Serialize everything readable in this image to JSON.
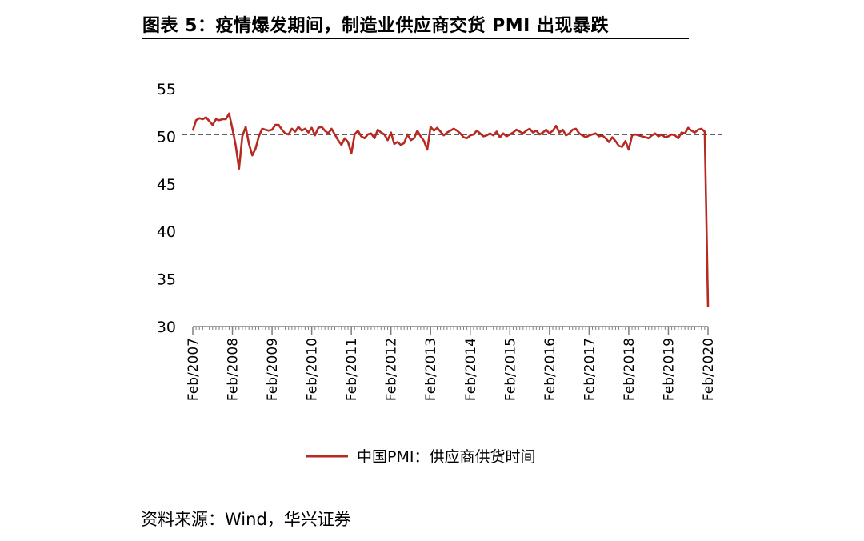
{
  "figure": {
    "title": "图表 5：疫情爆发期间，制造业供应商交货 PMI 出现暴跌",
    "source": "资料来源：Wind，华兴证券"
  },
  "colors": {
    "series": "#b72a22",
    "reference_line": "#000000",
    "axis": "#7f7f7f"
  },
  "chart_data": {
    "type": "line",
    "title": "",
    "xlabel": "",
    "ylabel": "",
    "ylim": [
      30,
      55
    ],
    "yticks": [
      30,
      35,
      40,
      45,
      50,
      55
    ],
    "tick_labels": [
      "Feb/2007",
      "Feb/2008",
      "Feb/2009",
      "Feb/2010",
      "Feb/2011",
      "Feb/2012",
      "Feb/2013",
      "Feb/2014",
      "Feb/2015",
      "Feb/2016",
      "Feb/2017",
      "Feb/2018",
      "Feb/2019",
      "Feb/2020"
    ],
    "grid": false,
    "legend": "bottom-center",
    "reference_line": {
      "y": 50.2,
      "style": "dashed"
    },
    "series": [
      {
        "name": "中国PMI：供应商供货时间",
        "start": "2007-02",
        "frequency": "monthly",
        "values": [
          50.6,
          51.7,
          51.9,
          51.8,
          52.0,
          51.6,
          51.2,
          51.8,
          51.7,
          51.8,
          51.8,
          52.4,
          50.8,
          49.0,
          46.6,
          50.0,
          51.0,
          49.2,
          48.0,
          48.7,
          50.0,
          50.8,
          50.7,
          50.6,
          50.7,
          51.2,
          51.2,
          50.7,
          50.3,
          50.2,
          50.8,
          50.5,
          51.0,
          50.6,
          50.8,
          50.4,
          50.9,
          50.1,
          50.9,
          51.0,
          50.6,
          50.3,
          50.8,
          50.2,
          49.6,
          49.1,
          49.8,
          49.4,
          48.2,
          50.2,
          50.6,
          50.0,
          49.8,
          50.2,
          50.3,
          49.8,
          50.7,
          50.4,
          50.2,
          49.6,
          50.4,
          49.2,
          49.4,
          49.1,
          49.3,
          50.2,
          49.6,
          49.8,
          50.6,
          50.0,
          49.5,
          48.6,
          51.0,
          50.6,
          50.9,
          50.5,
          50.1,
          50.4,
          50.6,
          50.8,
          50.6,
          50.3,
          49.9,
          49.8,
          50.1,
          50.2,
          50.6,
          50.3,
          50.0,
          50.1,
          50.3,
          50.1,
          50.5,
          49.9,
          50.3,
          50.0,
          50.2,
          50.4,
          50.7,
          50.5,
          50.3,
          50.6,
          50.8,
          50.4,
          50.6,
          50.2,
          50.4,
          50.7,
          50.3,
          50.6,
          51.1,
          50.4,
          50.7,
          50.1,
          50.3,
          50.7,
          50.8,
          50.3,
          50.1,
          49.9,
          50.1,
          50.2,
          50.3,
          50.0,
          50.1,
          49.8,
          49.4,
          49.9,
          49.5,
          49.0,
          48.9,
          49.5,
          48.6,
          50.1,
          50.2,
          50.1,
          50.0,
          49.9,
          49.8,
          50.1,
          50.3,
          50.0,
          50.2,
          49.9,
          50.0,
          50.2,
          50.1,
          49.8,
          50.4,
          50.3,
          50.9,
          50.6,
          50.4,
          50.7,
          50.8,
          50.5,
          32.1
        ]
      }
    ]
  }
}
